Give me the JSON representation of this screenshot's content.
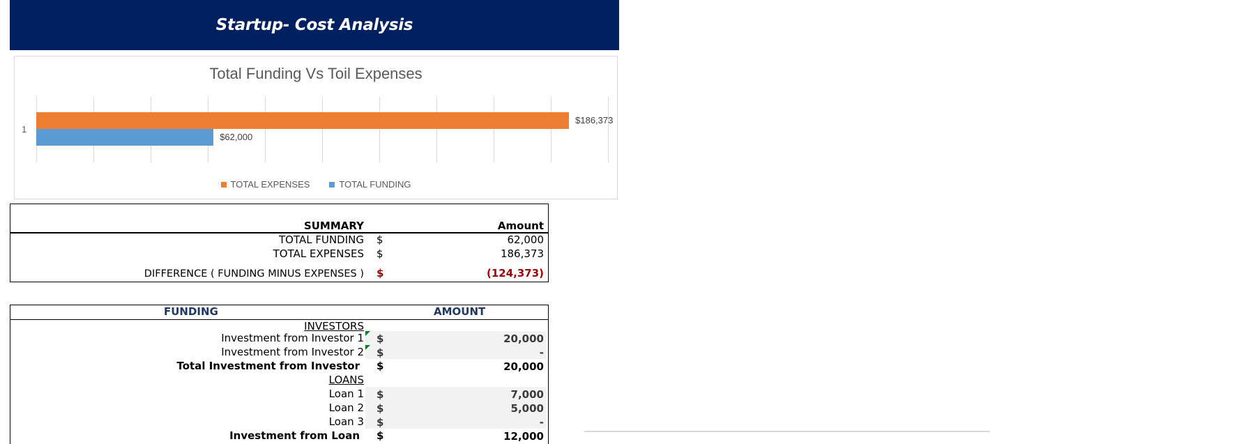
{
  "banner": {
    "title": "Startup- Cost Analysis",
    "color": "#002060"
  },
  "chart_data": {
    "type": "bar",
    "orientation": "horizontal",
    "title": "Total Funding Vs Toil Expenses",
    "categories": [
      "1"
    ],
    "series": [
      {
        "name": "TOTAL EXPENSES",
        "values": [
          186373
        ],
        "color": "#ED7D31",
        "label": "$186,373"
      },
      {
        "name": "TOTAL FUNDING",
        "values": [
          62000
        ],
        "color": "#5B9BD5",
        "label": "$62,000"
      }
    ],
    "xlim": [
      0,
      200000
    ],
    "grid": true,
    "grid_count": 10,
    "legend_position": "bottom",
    "xlabel": "",
    "ylabel": ""
  },
  "summary": {
    "header_label": "SUMMARY",
    "header_amount": "Amount",
    "rows": [
      {
        "label": "TOTAL FUNDING",
        "currency": "$",
        "amount": "62,000"
      },
      {
        "label": "TOTAL EXPENSES",
        "currency": "$",
        "amount": "186,373"
      },
      {
        "label": "DIFFERENCE  ( FUNDING MINUS EXPENSES )",
        "currency": "$",
        "amount": "(124,373)"
      }
    ]
  },
  "funding": {
    "header_label": "FUNDING",
    "header_amount": "AMOUNT",
    "investors_heading": "INVESTORS",
    "investors": [
      {
        "label": "Investment from Investor 1",
        "currency": "$",
        "amount": "20,000"
      },
      {
        "label": "Investment from Investor 2",
        "currency": "$",
        "amount": "-"
      }
    ],
    "investors_total": {
      "label": "Total Investment from Investor",
      "currency": "$",
      "amount": "20,000"
    },
    "loans_heading": "LOANS",
    "loans": [
      {
        "label": "Loan 1",
        "currency": "$",
        "amount": "7,000"
      },
      {
        "label": "Loan 2",
        "currency": "$",
        "amount": "5,000"
      },
      {
        "label": "Loan 3",
        "currency": "$",
        "amount": "-"
      }
    ],
    "loans_total": {
      "label": "Investment from Loan",
      "currency": "$",
      "amount": "12,000"
    }
  }
}
